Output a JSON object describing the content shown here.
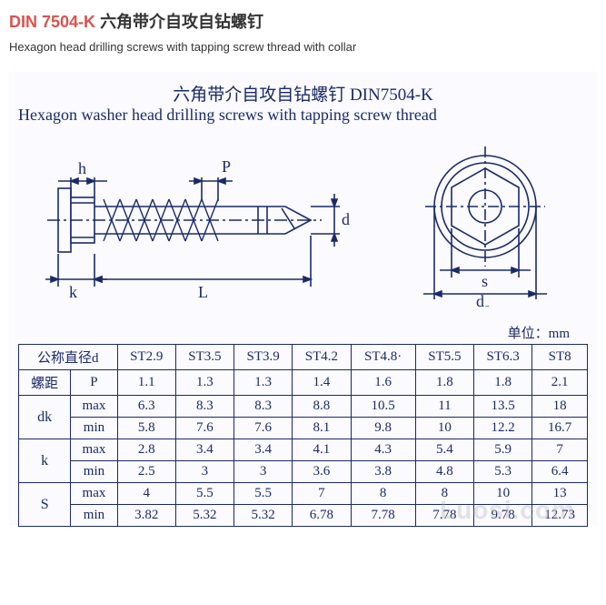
{
  "header": {
    "code": "DIN 7504-K",
    "title_cn": "六角带介自攻自钻螺钉",
    "subtitle_en": "Hexagon head drilling screws with tapping screw thread with collar"
  },
  "figure": {
    "caption_cn": "六角带介自攻自钻螺钉    DIN7504-K",
    "caption_en": "Hexagon washer head drilling screws with tapping screw thread",
    "side_view": {
      "dim_h": "h",
      "dim_P": "P",
      "dim_k": "k",
      "dim_L": "L",
      "dim_d": "d",
      "stroke": "#1b2a66",
      "bg": "#fafaff"
    },
    "front_view": {
      "dim_s": "s",
      "dim_dc": "d",
      "dim_dc_sub": "c",
      "stroke": "#1b2a66"
    }
  },
  "table": {
    "unit_label": "单位：mm",
    "header_d": "公称直径d",
    "header_P_label": "螺距",
    "header_P_sym": "P",
    "sizes": [
      "ST2.9",
      "ST3.5",
      "ST3.9",
      "ST4.2",
      "ST4.8·",
      "ST5.5",
      "ST6.3",
      "ST8"
    ],
    "rows": [
      {
        "label": "",
        "sym": "P",
        "vals": [
          "1.1",
          "1.3",
          "1.3",
          "1.4",
          "1.6",
          "1.8",
          "1.8",
          "2.1"
        ]
      }
    ],
    "groups": [
      {
        "sym": "dk",
        "rows": [
          {
            "label": "max",
            "vals": [
              "6.3",
              "8.3",
              "8.3",
              "8.8",
              "10.5",
              "11",
              "13.5",
              "18"
            ]
          },
          {
            "label": "min",
            "vals": [
              "5.8",
              "7.6",
              "7.6",
              "8.1",
              "9.8",
              "10",
              "12.2",
              "16.7"
            ]
          }
        ]
      },
      {
        "sym": "k",
        "rows": [
          {
            "label": "max",
            "vals": [
              "2.8",
              "3.4",
              "3.4",
              "4.1",
              "4.3",
              "5.4",
              "5.9",
              "7"
            ]
          },
          {
            "label": "min",
            "vals": [
              "2.5",
              "3",
              "3",
              "3.6",
              "3.8",
              "4.8",
              "5.3",
              "6.4"
            ]
          }
        ]
      },
      {
        "sym": "S",
        "rows": [
          {
            "label": "max",
            "vals": [
              "4",
              "5.5",
              "5.5",
              "7",
              "8",
              "8",
              "10",
              "13"
            ]
          },
          {
            "label": "min",
            "vals": [
              "3.82",
              "5.32",
              "5.32",
              "6.78",
              "7.78",
              "7.78",
              "9.78",
              "12.73"
            ]
          }
        ]
      }
    ]
  },
  "watermark": "Luosi.com",
  "colors": {
    "line": "#1b2a66",
    "title": "#d9534f",
    "bg": "#fafaff"
  }
}
